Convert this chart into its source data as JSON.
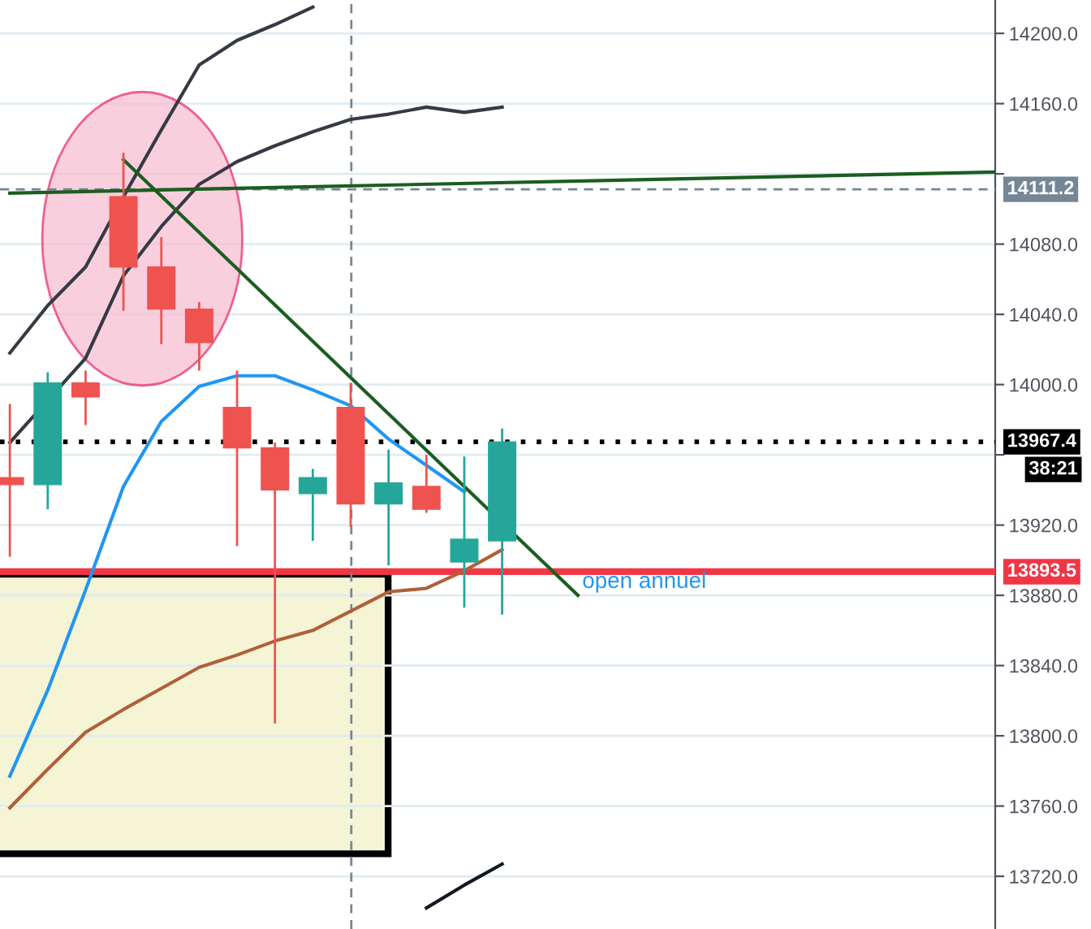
{
  "chart_data": {
    "type": "candlestick",
    "categories": [
      null,
      null,
      null,
      null,
      null,
      null,
      null,
      null,
      null,
      null,
      null,
      null,
      null,
      null,
      null,
      null,
      null,
      null,
      null,
      null,
      null,
      null,
      null,
      null,
      null,
      null,
      null
    ],
    "ohlc": [
      [
        13947,
        13989,
        13902,
        13943
      ],
      [
        13943,
        14007,
        13929,
        14001
      ],
      [
        14001,
        14008,
        13977,
        13993
      ],
      [
        14107,
        14132,
        14042,
        14067
      ],
      [
        14067,
        14084,
        14023,
        14043
      ],
      [
        14043,
        14047,
        14008,
        14024
      ],
      [
        13987,
        14008,
        13908,
        13964
      ],
      [
        13964,
        13967,
        13807,
        13940
      ],
      [
        13938,
        13952,
        13911,
        13947
      ],
      [
        13987,
        14001,
        13919,
        13932
      ],
      [
        13932,
        13963,
        13897,
        13944
      ],
      [
        13942,
        13960,
        13927,
        13929
      ],
      [
        13899,
        13959,
        13873,
        13912
      ],
      [
        13911,
        13975,
        13869,
        13967.4
      ],
      null,
      null,
      null,
      null,
      null,
      null,
      null,
      null,
      null,
      null,
      null,
      null,
      null
    ],
    "colors": [
      "#ef5350",
      "#26a69a",
      "#ef5350",
      "#ef5350",
      "#ef5350",
      "#ef5350",
      "#ef5350",
      "#ef5350",
      "#26a69a",
      "#ef5350",
      "#26a69a",
      "#ef5350",
      "#26a69a",
      "#26a69a",
      null,
      null,
      null,
      null,
      null,
      null,
      null,
      null,
      null,
      null,
      null,
      null,
      null
    ],
    "series": [
      {
        "type": "line",
        "color": "#363a45",
        "values": [
          14018,
          14045,
          14067,
          14107,
          14145,
          14182,
          14196,
          14205,
          14215,
          null,
          null,
          null,
          null,
          null,
          null,
          null,
          null,
          null,
          null,
          null,
          null,
          null,
          null,
          null,
          null,
          null,
          null
        ]
      },
      {
        "type": "line",
        "color": "#363a45",
        "values": [
          13967,
          null,
          14015,
          14062,
          14090,
          14114,
          14127,
          14136,
          14144,
          14151,
          14154,
          14158,
          14155,
          14158,
          null,
          null,
          null,
          null,
          null,
          null,
          null,
          null,
          null,
          null,
          null,
          null,
          null
        ]
      },
      {
        "type": "line",
        "color": "#2196f3",
        "values": [
          13777,
          13826,
          13883,
          13942,
          13979,
          13999,
          14005,
          14005,
          13997,
          13988,
          13969,
          13954,
          13939,
          null,
          null,
          null,
          null,
          null,
          null,
          null,
          null,
          null,
          null,
          null,
          null,
          null,
          null
        ]
      },
      {
        "type": "line",
        "color": "#b0603a",
        "values": [
          13759,
          13781,
          13802,
          13815,
          13827,
          13839,
          13846,
          13854,
          13860,
          13871,
          13882,
          13884,
          13894,
          13906,
          null,
          null,
          null,
          null,
          null,
          null,
          null,
          null,
          null,
          null,
          null,
          null,
          null
        ]
      },
      {
        "type": "line",
        "color": "#131722",
        "values": [
          null,
          null,
          null,
          null,
          null,
          null,
          null,
          null,
          null,
          null,
          null,
          13702,
          13715,
          13727,
          null,
          null,
          null,
          null,
          null,
          null,
          null,
          null,
          null,
          null,
          null,
          null,
          null
        ]
      },
      {
        "type": "line",
        "color": "#1b5e20",
        "values": [
          14109,
          null,
          null,
          null,
          null,
          null,
          null,
          null,
          null,
          null,
          null,
          null,
          null,
          null,
          null,
          null,
          null,
          null,
          null,
          null,
          null,
          null,
          null,
          null,
          null,
          null,
          14121
        ]
      },
      {
        "type": "line",
        "color": "#1b5e20",
        "values": [
          null,
          null,
          null,
          14128,
          null,
          null,
          null,
          null,
          null,
          null,
          null,
          null,
          null,
          null,
          null,
          13880,
          null,
          null,
          null,
          null,
          null,
          null,
          null,
          null,
          null,
          null,
          null
        ]
      }
    ],
    "ylim": [
      13690,
      14219
    ],
    "yticks": [
      {
        "value": 13720,
        "label": "13720.0"
      },
      {
        "value": 13760,
        "label": "13760.0"
      },
      {
        "value": 13800,
        "label": "13800.0"
      },
      {
        "value": 13840,
        "label": "13840.0"
      },
      {
        "value": 13880,
        "label": "13880.0"
      },
      {
        "value": 13920,
        "label": "13920.0"
      },
      {
        "value": 13960,
        "label": null
      },
      {
        "value": 14000,
        "label": "14000.0"
      },
      {
        "value": 14040,
        "label": "14040.0"
      },
      {
        "value": 14080,
        "label": "14080.0"
      },
      {
        "value": 14120,
        "label": null
      },
      {
        "value": 14160,
        "label": "14160.0"
      },
      {
        "value": 14200,
        "label": "14200.0"
      }
    ],
    "grid": "y",
    "ref_lines": [
      {
        "axis": "y",
        "value": 14111.2,
        "label": null,
        "color": "#758696",
        "line_style": "dashed"
      },
      {
        "axis": "y",
        "value": 13967.4,
        "label": null,
        "color": "#000000",
        "line_style": "dotted"
      },
      {
        "axis": "y",
        "value": 13893.5,
        "label": "open annuel",
        "color": "#f23645",
        "line_style": "solid"
      }
    ],
    "annotations": [
      "14111.2",
      "13967.4",
      "13893.5",
      "38:21"
    ]
  }
}
